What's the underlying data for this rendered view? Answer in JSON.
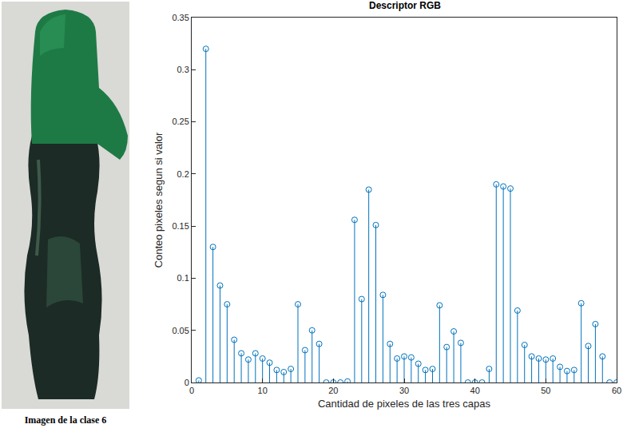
{
  "image": {
    "caption": "Imagen de la clase 6"
  },
  "chart_data": {
    "type": "stem",
    "title": "Descriptor RGB",
    "x_label": "Cantidad de pixeles de las tres capas",
    "y_label": "Conteo pixeles segun si valor",
    "x": [
      1,
      2,
      3,
      4,
      5,
      6,
      7,
      8,
      9,
      10,
      11,
      12,
      13,
      14,
      15,
      16,
      17,
      18,
      19,
      20,
      21,
      22,
      23,
      24,
      25,
      26,
      27,
      28,
      29,
      30,
      31,
      32,
      33,
      34,
      35,
      36,
      37,
      38,
      39,
      40,
      41,
      42,
      43,
      44,
      45,
      46,
      47,
      48,
      49,
      50,
      51,
      52,
      53,
      54,
      55,
      56,
      57,
      58,
      59,
      60
    ],
    "values": [
      0.002,
      0.32,
      0.13,
      0.093,
      0.075,
      0.041,
      0.028,
      0.022,
      0.028,
      0.023,
      0.019,
      0.012,
      0.01,
      0.013,
      0.075,
      0.031,
      0.05,
      0.037,
      0,
      0,
      0,
      0.001,
      0.156,
      0.08,
      0.185,
      0.151,
      0.084,
      0.037,
      0.023,
      0.025,
      0.024,
      0.018,
      0.012,
      0.013,
      0.074,
      0.034,
      0.049,
      0.038,
      0,
      0,
      0,
      0.013,
      0.19,
      0.188,
      0.186,
      0.069,
      0.036,
      0.025,
      0.023,
      0.022,
      0.023,
      0.015,
      0.011,
      0.012,
      0.076,
      0.035,
      0.056,
      0.025,
      0,
      0
    ],
    "color": "#0072bd",
    "marker": "circle-open",
    "line_style": "solid",
    "xlim": [
      0,
      60
    ],
    "xticks": [
      0,
      10,
      20,
      30,
      40,
      50,
      60
    ],
    "ylim": [
      0,
      0.35
    ],
    "yticks": [
      0,
      0.05,
      0.1,
      0.15,
      0.2,
      0.25,
      0.3,
      0.35
    ],
    "grid": false
  }
}
